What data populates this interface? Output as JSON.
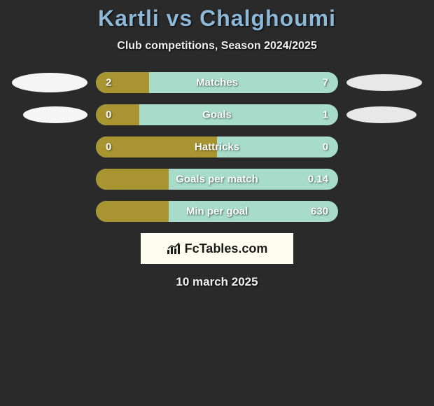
{
  "title": "Kartli vs Chalghoumi",
  "subtitle": "Club competitions, Season 2024/2025",
  "colors": {
    "background": "#2a2a2a",
    "title_color": "#8db8d8",
    "bar_bg": "#a6dcc9",
    "bar_fill": "#a89430",
    "ellipse_left": "#f5f5f5",
    "ellipse_right": "#e8e8e8",
    "logo_bg": "#fffdf0"
  },
  "rows": [
    {
      "label": "Matches",
      "left": "2",
      "right": "7",
      "fill_pct": 22,
      "show_ellipses": true
    },
    {
      "label": "Goals",
      "left": "0",
      "right": "1",
      "fill_pct": 18,
      "show_ellipses": true
    },
    {
      "label": "Hattricks",
      "left": "0",
      "right": "0",
      "fill_pct": 50,
      "show_ellipses": false
    },
    {
      "label": "Goals per match",
      "left": "",
      "right": "0.14",
      "fill_pct": 30,
      "show_ellipses": false
    },
    {
      "label": "Min per goal",
      "left": "",
      "right": "630",
      "fill_pct": 30,
      "show_ellipses": false
    }
  ],
  "logo": "FcTables.com",
  "date": "10 march 2025",
  "ellipse_geometry": {
    "row0": {
      "left_w": 108,
      "left_h": 28,
      "right_w": 108,
      "right_h": 24
    },
    "row1": {
      "left_w": 92,
      "left_h": 24,
      "right_w": 100,
      "right_h": 24
    }
  }
}
